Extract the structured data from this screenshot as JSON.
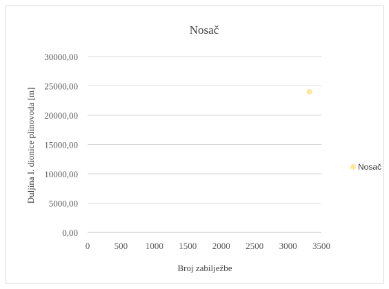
{
  "chart_data": {
    "type": "scatter",
    "title": "Nosač",
    "xlabel": "Broj zabilježbe",
    "ylabel": "Duljina  I. dionice plinovoda [m]",
    "xlim": [
      0,
      3500
    ],
    "ylim": [
      0,
      30000
    ],
    "x_ticks": [
      "0",
      "500",
      "1000",
      "1500",
      "2000",
      "2500",
      "3000",
      "3500"
    ],
    "y_ticks": [
      "0,00",
      "5000,00",
      "10000,00",
      "15000,00",
      "20000,00",
      "25000,00",
      "30000,00"
    ],
    "grid": true,
    "legend": "right",
    "series": [
      {
        "name": "Nosač",
        "color": "#ffe699",
        "points": [
          {
            "x": 3320,
            "y": 24000
          }
        ]
      }
    ]
  }
}
